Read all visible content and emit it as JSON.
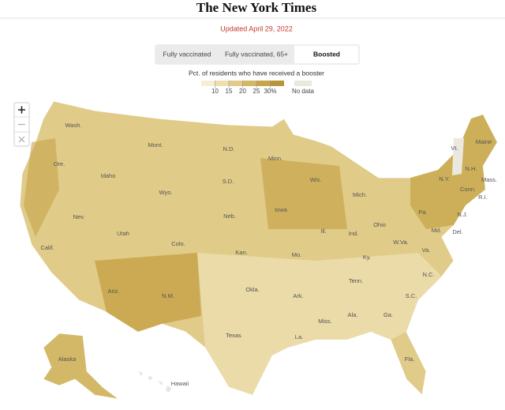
{
  "header": {
    "title": "The New York Times",
    "updated": "Updated April 29, 2022"
  },
  "tabs": [
    {
      "label": "Fully vaccinated",
      "selected": false
    },
    {
      "label": "Fully vaccinated, 65+",
      "selected": false
    },
    {
      "label": "Boosted",
      "selected": true
    }
  ],
  "legend": {
    "title": "Pct. of residents who have received a booster",
    "ticks": [
      10,
      15,
      20,
      25,
      {
        "value": 30,
        "label": "30%"
      }
    ],
    "colors": [
      "#f6efd6",
      "#ecdfb0",
      "#e0cb89",
      "#d3b867",
      "#c7a54a",
      "#b8943a"
    ],
    "no_data_label": "No data",
    "no_data_color": "#ebe8e0"
  },
  "map": {
    "labels": [
      "Wash.",
      "Ore.",
      "Calif.",
      "Nev.",
      "Idaho",
      "Mont.",
      "Wyo.",
      "Utah",
      "Ariz.",
      "Colo.",
      "N.M.",
      "N.D.",
      "S.D.",
      "Neb.",
      "Kan.",
      "Okla.",
      "Texas",
      "Minn.",
      "Iowa",
      "Mo.",
      "Ark.",
      "La.",
      "Wis.",
      "Ill.",
      "Mich.",
      "Ind.",
      "Ohio",
      "Ky.",
      "Tenn.",
      "Miss.",
      "Ala.",
      "Ga.",
      "Fla.",
      "S.C.",
      "N.C.",
      "Va.",
      "W.Va.",
      "Pa.",
      "N.Y.",
      "Vt.",
      "N.H.",
      "Maine",
      "Mass.",
      "R.I.",
      "Conn.",
      "N.J.",
      "Del.",
      "Md.",
      "Alaska",
      "Hawaii"
    ]
  }
}
